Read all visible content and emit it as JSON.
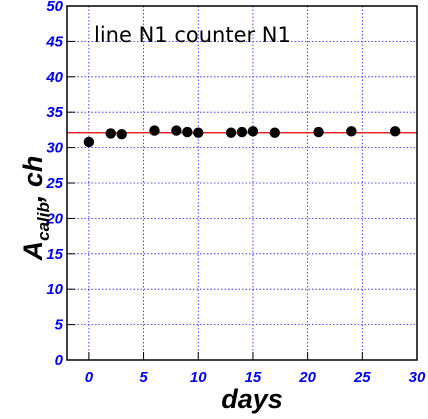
{
  "chart_data": {
    "type": "scatter",
    "annotation": "line N1 counter N1",
    "xlabel": "days",
    "ylabel_main": "A",
    "ylabel_sub": "calib",
    "ylabel_tail": ", ch",
    "xlim": [
      -2,
      30
    ],
    "ylim": [
      0,
      50
    ],
    "x_ticks": [
      0,
      5,
      10,
      15,
      20,
      25,
      30
    ],
    "y_ticks": [
      0,
      5,
      10,
      15,
      20,
      25,
      30,
      35,
      40,
      45,
      50
    ],
    "grid": true,
    "reference_line": {
      "y": 32.1,
      "color": "#e00000"
    },
    "marker_color": "#000000",
    "grid_color": "#1a1aff",
    "points": [
      {
        "x": 0,
        "y": 30.8
      },
      {
        "x": 2,
        "y": 32.0
      },
      {
        "x": 3,
        "y": 31.9
      },
      {
        "x": 6,
        "y": 32.4
      },
      {
        "x": 8,
        "y": 32.4
      },
      {
        "x": 9,
        "y": 32.2
      },
      {
        "x": 10,
        "y": 32.1
      },
      {
        "x": 13,
        "y": 32.1
      },
      {
        "x": 14,
        "y": 32.2
      },
      {
        "x": 15,
        "y": 32.3
      },
      {
        "x": 17,
        "y": 32.1
      },
      {
        "x": 21,
        "y": 32.2
      },
      {
        "x": 24,
        "y": 32.3
      },
      {
        "x": 28,
        "y": 32.3
      }
    ]
  }
}
